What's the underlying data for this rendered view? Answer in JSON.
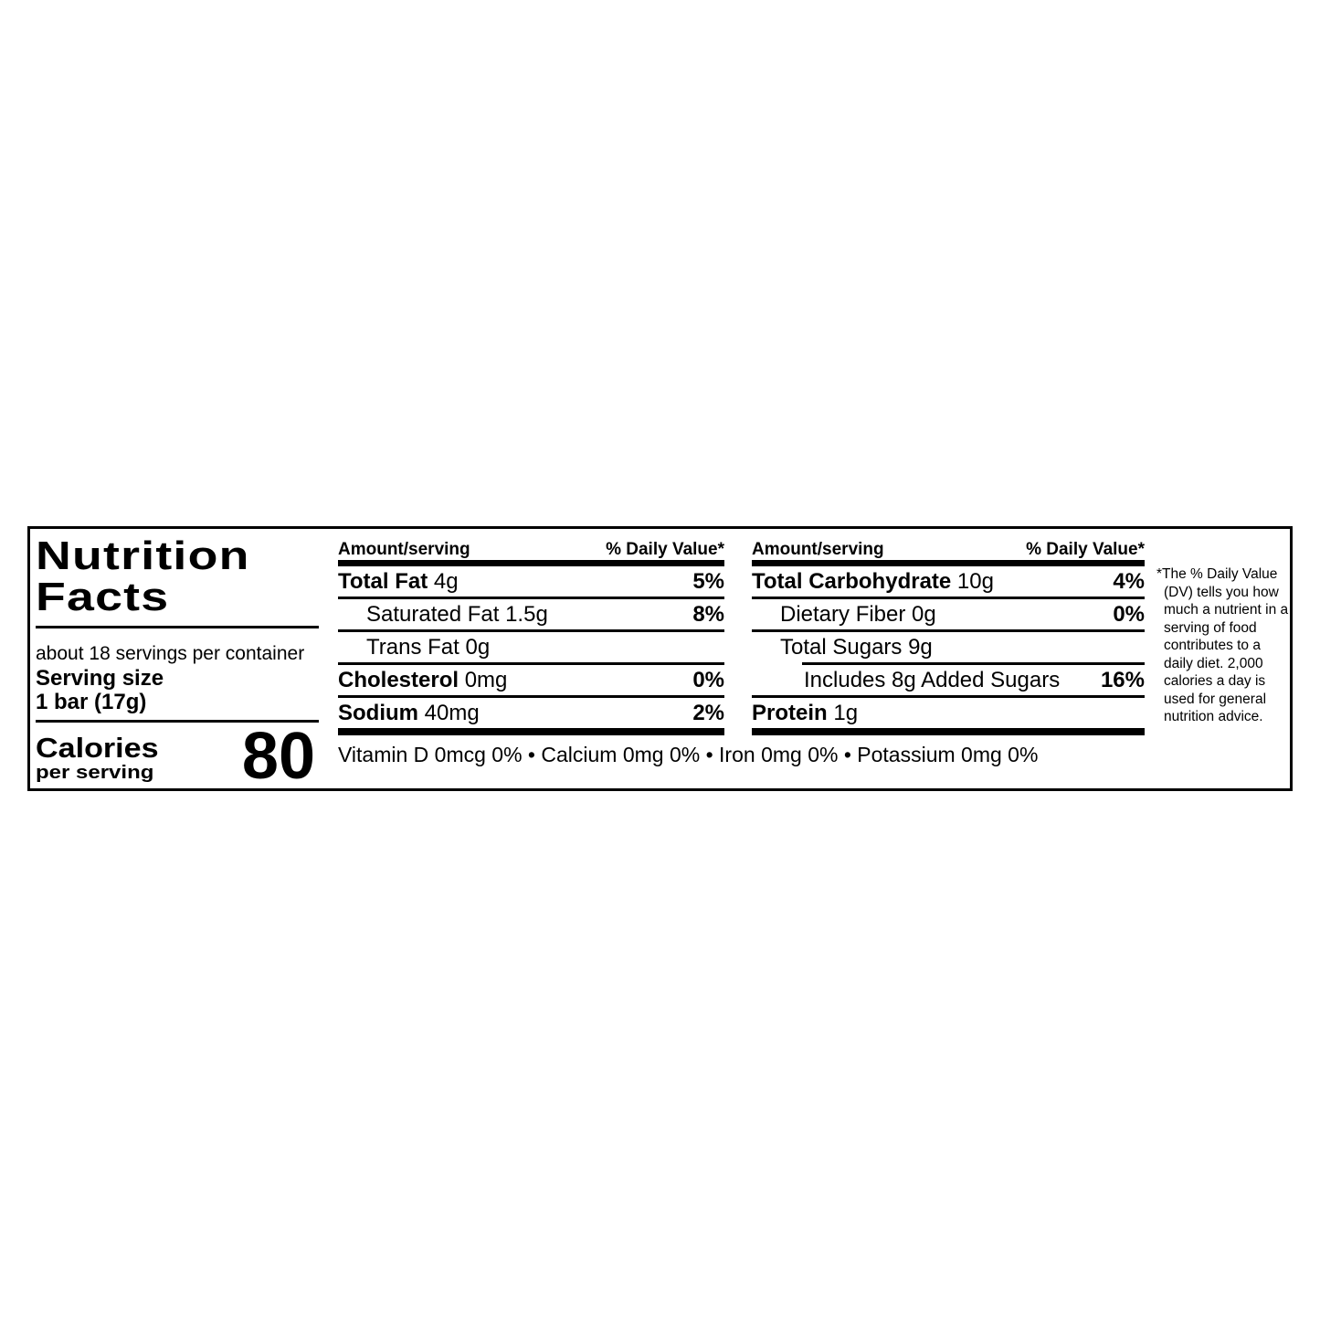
{
  "nutrition_label": {
    "title_line1": "Nutrition",
    "title_line2": "Facts",
    "servings_per_container": "about 18 servings per container",
    "serving_size_label": "Serving size",
    "serving_size_value": "1 bar (17g)",
    "calories_label": "Calories",
    "calories_unit": "per serving",
    "calories_value": "80",
    "columns": [
      {
        "header_amount": "Amount/serving",
        "header_dv": "% Daily Value*",
        "rows": [
          {
            "bold": "Total Fat",
            "rest": " 4g",
            "dv": "5%"
          },
          {
            "bold": "",
            "rest": "Saturated Fat 1.5g",
            "dv": "8%"
          },
          {
            "bold": "",
            "rest": "Trans Fat 0g",
            "dv": ""
          },
          {
            "bold": "Cholesterol",
            "rest": " 0mg",
            "dv": "0%"
          },
          {
            "bold": "Sodium",
            "rest": " 40mg",
            "dv": "2%"
          }
        ]
      },
      {
        "header_amount": "Amount/serving",
        "header_dv": "% Daily Value*",
        "rows": [
          {
            "bold": "Total Carbohydrate",
            "rest": " 10g",
            "dv": "4%"
          },
          {
            "bold": "",
            "rest": "Dietary Fiber 0g",
            "dv": "0%"
          },
          {
            "bold": "",
            "rest": "Total Sugars 9g",
            "dv": ""
          },
          {
            "bold": "",
            "rest": "Includes 8g Added Sugars",
            "dv": "16%"
          },
          {
            "bold": "Protein",
            "rest": " 1g",
            "dv": ""
          }
        ]
      }
    ],
    "micronutrients": "Vitamin D 0mcg 0% • Calcium 0mg 0% • Iron 0mg 0% • Potassium 0mg 0%",
    "footnote": "*The % Daily Value (DV) tells you how much a nutrient in a serving of food contributes to a daily diet. 2,000 calories a day is used for general nutrition advice."
  }
}
